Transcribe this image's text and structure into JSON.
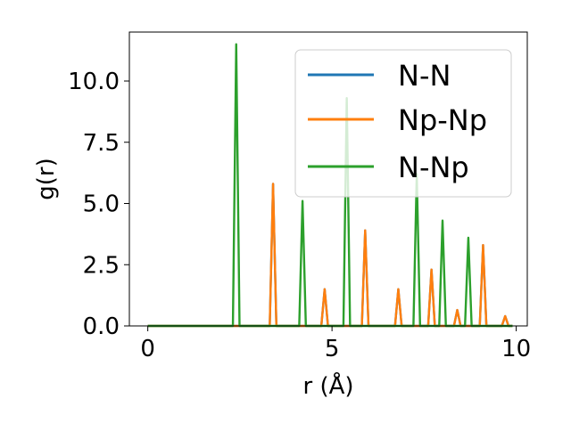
{
  "chart_data": {
    "type": "line",
    "xlabel": "r (Å)",
    "ylabel": "g(r)",
    "xlim": [
      -0.5,
      10.3
    ],
    "ylim": [
      0,
      12.0
    ],
    "xticks": [
      0,
      5,
      10
    ],
    "xtick_labels": [
      "0",
      "5",
      "10"
    ],
    "yticks": [
      0.0,
      2.5,
      5.0,
      7.5,
      10.0
    ],
    "ytick_labels": [
      "0.0",
      "2.5",
      "5.0",
      "7.5",
      "10.0"
    ],
    "grid": false,
    "legend_position": "top-right",
    "series": [
      {
        "name": "N-N",
        "color": "#1f77b4",
        "peaks": [
          {
            "r": 3.4,
            "g": 5.8
          },
          {
            "r": 4.8,
            "g": 1.5
          },
          {
            "r": 5.9,
            "g": 3.9
          },
          {
            "r": 6.8,
            "g": 1.5
          },
          {
            "r": 7.7,
            "g": 2.3
          },
          {
            "r": 8.4,
            "g": 0.65
          },
          {
            "r": 9.1,
            "g": 3.3
          },
          {
            "r": 9.7,
            "g": 0.4
          }
        ]
      },
      {
        "name": "Np-Np",
        "color": "#ff7f0e",
        "peaks": [
          {
            "r": 3.4,
            "g": 5.8
          },
          {
            "r": 4.8,
            "g": 1.5
          },
          {
            "r": 5.9,
            "g": 3.9
          },
          {
            "r": 6.8,
            "g": 1.5
          },
          {
            "r": 7.7,
            "g": 2.3
          },
          {
            "r": 8.4,
            "g": 0.65
          },
          {
            "r": 9.1,
            "g": 3.3
          },
          {
            "r": 9.7,
            "g": 0.4
          }
        ]
      },
      {
        "name": "N-Np",
        "color": "#2ca02c",
        "peaks": [
          {
            "r": 2.4,
            "g": 11.5
          },
          {
            "r": 4.2,
            "g": 5.1
          },
          {
            "r": 5.4,
            "g": 9.3
          },
          {
            "r": 7.3,
            "g": 6.2
          },
          {
            "r": 8.0,
            "g": 4.3
          },
          {
            "r": 8.7,
            "g": 3.6
          }
        ]
      }
    ]
  }
}
